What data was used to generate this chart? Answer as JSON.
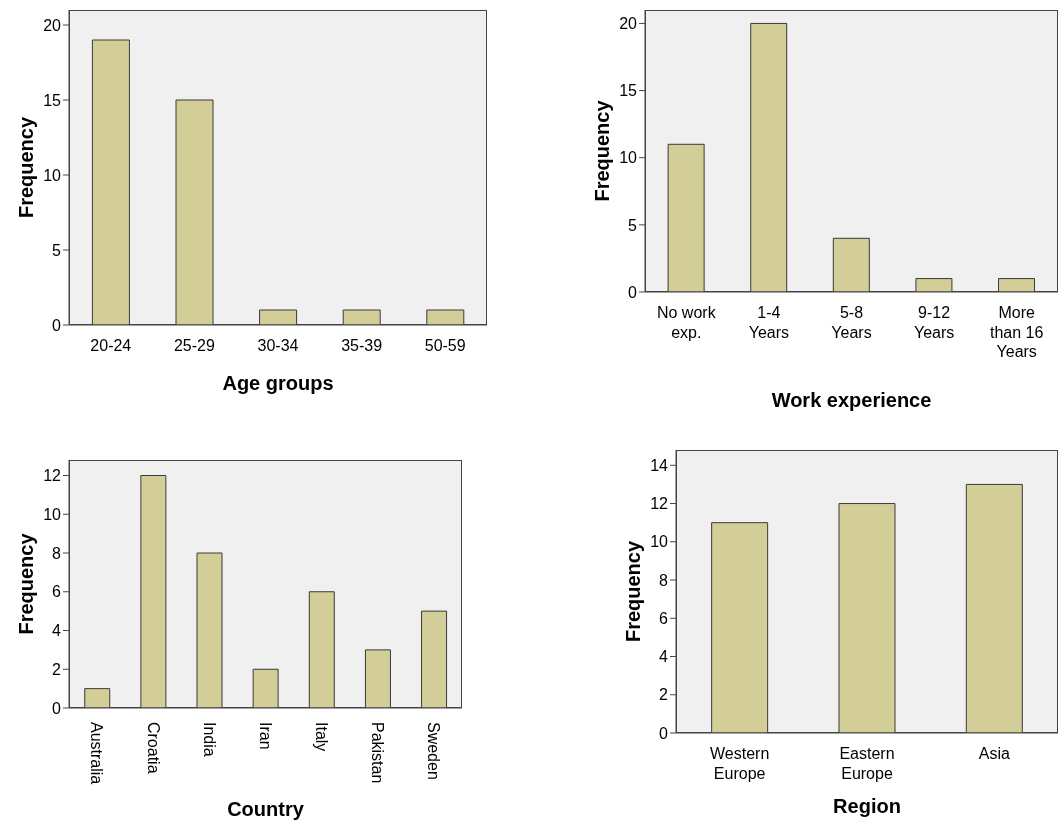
{
  "chart_data": [
    {
      "type": "bar",
      "xlabel": "Age groups",
      "ylabel": "Frequency",
      "categories": [
        "20-24",
        "25-29",
        "30-34",
        "35-39",
        "50-59"
      ],
      "values": [
        19,
        15,
        1,
        1,
        1
      ],
      "color": "#d3ce97",
      "ylim": [
        0,
        21
      ],
      "yticks": [
        0,
        5,
        10,
        15,
        20
      ]
    },
    {
      "type": "bar",
      "xlabel": "Work experience",
      "ylabel": "Frequency",
      "categories": [
        "No work exp.",
        "1-4 Years",
        "5-8 Years",
        "9-12 Years",
        "More than 16 Years"
      ],
      "values": [
        11,
        20,
        4,
        1,
        1
      ],
      "color": "#d3ce97",
      "ylim": [
        0,
        21
      ],
      "yticks": [
        0,
        5,
        10,
        15,
        20
      ]
    },
    {
      "type": "bar",
      "xlabel": "Country",
      "ylabel": "Frequency",
      "categories": [
        "Australia",
        "Croatia",
        "India",
        "Iran",
        "Italy",
        "Pakistan",
        "Sweden"
      ],
      "values": [
        1,
        12,
        8,
        2,
        6,
        3,
        5
      ],
      "color": "#d3ce97",
      "ylim": [
        0,
        12.8
      ],
      "yticks": [
        0,
        2,
        4,
        6,
        8,
        10,
        12
      ]
    },
    {
      "type": "bar",
      "xlabel": "Region",
      "ylabel": "Frequency",
      "categories": [
        "Western Europe",
        "Eastern Europe",
        "Asia"
      ],
      "values": [
        11,
        12,
        13
      ],
      "color": "#d3ce97",
      "ylim": [
        0,
        14.8
      ],
      "yticks": [
        0,
        2,
        4,
        6,
        8,
        10,
        12,
        14
      ]
    }
  ]
}
